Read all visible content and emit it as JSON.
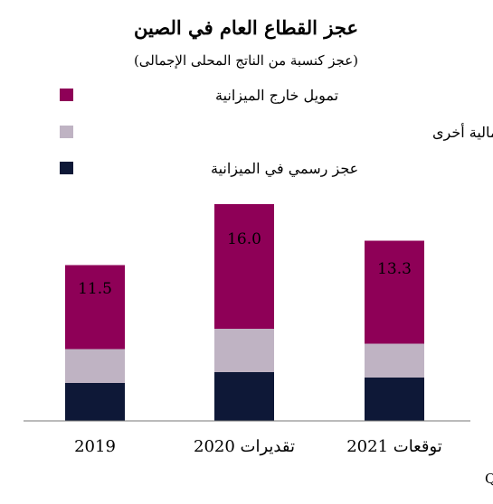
{
  "chart_data": {
    "type": "bar",
    "stacked": true,
    "title": "عجز القطاع العام في الصين",
    "subtitle": "(عجز كنسبة من الناتج المحلى الإجمالى)",
    "categories": [
      "2019",
      "تقديرات 2020",
      "توقعات 2021"
    ],
    "series": [
      {
        "name": "عجز رسمي في الميزانية",
        "color": "#0e1837",
        "values": [
          2.8,
          3.6,
          3.2
        ]
      },
      {
        "name": "سحوبات من ودائع مالية وتحاويل من حسابات مالية أخرى",
        "color": "#bfb3c3",
        "values": [
          2.5,
          3.2,
          2.5
        ]
      },
      {
        "name": "تمويل خارج الميزانية",
        "color": "#8e0057",
        "values": [
          6.2,
          9.2,
          7.6
        ]
      }
    ],
    "totals": [
      "11.5",
      "16.0",
      "13.3"
    ],
    "ylim": [
      0,
      20
    ],
    "grid": false,
    "legend_position": "top-left",
    "source": "المصادر: قسم أبحاث الاستثمار العالمي في غولدمان ساكس، تحليلات QNB"
  }
}
